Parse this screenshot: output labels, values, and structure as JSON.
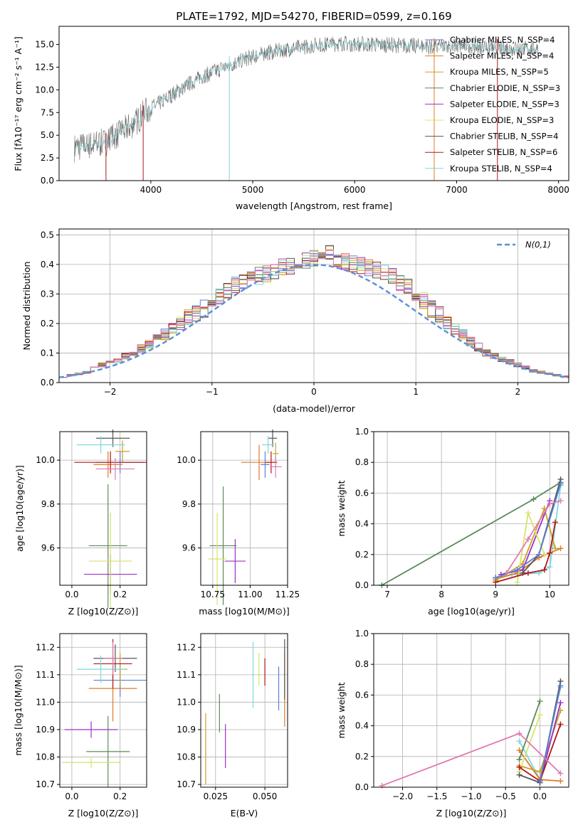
{
  "title": "PLATE=1792, MJD=54270, FIBERID=0599, z=0.169",
  "colors": [
    "#5b7fd6",
    "#e07a28",
    "#c9a227",
    "#5a8a5a",
    "#9b30c8",
    "#d8e36a",
    "#555555",
    "#b01818",
    "#7fd6dc",
    "#e07ab0"
  ],
  "spectrum": {
    "xlabel": "wavelength [Angstrom, rest frame]",
    "ylabel": "Flux [fλ10⁻¹⁷ erg cm⁻² s⁻¹ A⁻¹]",
    "xlim": [
      3100,
      8100
    ],
    "ylim": [
      0,
      17
    ],
    "xticks": [
      "4000",
      "5000",
      "6000",
      "7000",
      "8000"
    ],
    "yticks": [
      "0.0",
      "2.5",
      "5.0",
      "7.5",
      "10.0",
      "12.5",
      "15.0"
    ],
    "continuum_x": [
      3250,
      3400,
      3550,
      3700,
      3850,
      3950,
      4050,
      4200,
      4350,
      4500,
      4700,
      4900,
      5100,
      5300,
      5600,
      5900,
      6200,
      6500,
      6800,
      7100,
      7400,
      7700
    ],
    "continuum_y": [
      3.6,
      3.9,
      4.2,
      5.3,
      6.4,
      7.6,
      8.3,
      9.4,
      10.5,
      11.4,
      12.4,
      13.3,
      14.0,
      14.4,
      14.9,
      15.1,
      15.0,
      14.9,
      14.7,
      14.9,
      14.6,
      14.5
    ],
    "legend": [
      "Chabrier MILES, N_SSP=4",
      "Salpeter MILES, N_SSP=4",
      "Kroupa MILES, N_SSP=5",
      "Chabrier ELODIE, N_SSP=3",
      "Salpeter ELODIE, N_SSP=3",
      "Kroupa ELODIE, N_SSP=3",
      "Chabrier STELIB, N_SSP=4",
      "Salpeter STELIB, N_SSP=6",
      "Kroupa STELIB, N_SSP=4"
    ]
  },
  "histogram": {
    "xlabel": "(data-model)/error",
    "ylabel": "Normed distribution",
    "legend": "N(0,1)",
    "xlim": [
      -2.5,
      2.5
    ],
    "ylim": [
      0,
      0.52
    ],
    "xticks": [
      "−2",
      "−1",
      "0",
      "1",
      "2"
    ],
    "yticks": [
      "0.0",
      "0.1",
      "0.2",
      "0.3",
      "0.4",
      "0.5"
    ]
  },
  "age_vs_Z": {
    "xlabel": "Z [log10(Z/Z⊙)]",
    "ylabel": "age  [log10(age/yr)]",
    "xlim": [
      -0.05,
      0.31
    ],
    "ylim": [
      9.43,
      10.13
    ],
    "xticks": [
      "0.0",
      "0.2"
    ],
    "yticks": [
      "9.6",
      "9.8",
      "10.0"
    ]
  },
  "age_vs_mass": {
    "xlabel": "mass [log10(M/M⊙)]",
    "xlim": [
      10.67,
      11.25
    ],
    "ylim": [
      9.43,
      10.13
    ],
    "xticks": [
      "10.75",
      "11.00",
      "11.25"
    ],
    "yticks": [
      "9.6",
      "9.8",
      "10.0"
    ]
  },
  "weight_vs_age": {
    "xlabel": "age  [log10(age/yr)]",
    "ylabel": "mass weight",
    "xlim": [
      6.75,
      10.35
    ],
    "ylim": [
      0,
      1
    ],
    "xticks": [
      "7",
      "8",
      "9",
      "10"
    ],
    "yticks": [
      "0.0",
      "0.2",
      "0.4",
      "0.6",
      "0.8",
      "1.0"
    ]
  },
  "mass_vs_Z": {
    "xlabel": "Z [log10(Z/Z⊙)]",
    "ylabel": "mass [log10(M/M⊙)]",
    "xlim": [
      -0.05,
      0.31
    ],
    "ylim": [
      10.69,
      11.25
    ],
    "xticks": [
      "0.0",
      "0.2"
    ],
    "yticks": [
      "10.7",
      "10.8",
      "10.9",
      "11.0",
      "11.1",
      "11.2"
    ]
  },
  "mass_vs_ebv": {
    "xlabel": "E(B-V)",
    "xlim": [
      0.0175,
      0.0615
    ],
    "ylim": [
      10.69,
      11.25
    ],
    "xticks": [
      "0.025",
      "0.050"
    ],
    "yticks": [
      "10.7",
      "10.8",
      "10.9",
      "11.0",
      "11.1",
      "11.2"
    ]
  },
  "weight_vs_Z": {
    "xlabel": "Z [log10(Z/Z⊙)]",
    "ylabel": "mass weight",
    "xlim": [
      -2.42,
      0.42
    ],
    "ylim": [
      0,
      1
    ],
    "xticks": [
      "−2.0",
      "−1.5",
      "−1.0",
      "−0.5",
      "0.0"
    ],
    "yticks": [
      "0.0",
      "0.2",
      "0.4",
      "0.6",
      "0.8",
      "1.0"
    ]
  },
  "chart_data": [
    {
      "type": "line",
      "title": "PLATE=1792, MJD=54270, FIBERID=0599, z=0.169",
      "xlabel": "wavelength [Angstrom, rest frame]",
      "ylabel": "Flux [fλ10⁻¹⁷ erg cm⁻² s⁻¹ A⁻¹]",
      "xlim": [
        3100,
        8100
      ],
      "ylim": [
        0,
        17
      ],
      "series": [
        {
          "name": "Chabrier MILES, N_SSP=4"
        },
        {
          "name": "Salpeter MILES, N_SSP=4"
        },
        {
          "name": "Kroupa MILES, N_SSP=5"
        },
        {
          "name": "Chabrier ELODIE, N_SSP=3"
        },
        {
          "name": "Salpeter ELODIE, N_SSP=3"
        },
        {
          "name": "Kroupa ELODIE, N_SSP=3"
        },
        {
          "name": "Chabrier STELIB, N_SSP=4"
        },
        {
          "name": "Salpeter STELIB, N_SSP=6"
        },
        {
          "name": "Kroupa STELIB, N_SSP=4"
        }
      ],
      "approx_flux_x": [
        3250,
        3550,
        3850,
        4200,
        4500,
        4900,
        5300,
        5900,
        6500,
        7100,
        7700
      ],
      "approx_flux_y": [
        3.6,
        4.2,
        6.4,
        9.4,
        11.4,
        13.3,
        14.4,
        15.1,
        14.9,
        14.9,
        14.5
      ]
    },
    {
      "type": "bar",
      "xlabel": "(data-model)/error",
      "ylabel": "Normed distribution",
      "xlim": [
        -2.5,
        2.5
      ],
      "ylim": [
        0,
        0.52
      ],
      "bin_edges_start": -2.5,
      "bin_width": 0.1,
      "values": [
        0.02,
        0.025,
        0.03,
        0.035,
        0.05,
        0.06,
        0.07,
        0.075,
        0.09,
        0.1,
        0.115,
        0.13,
        0.15,
        0.165,
        0.18,
        0.2,
        0.22,
        0.235,
        0.25,
        0.27,
        0.29,
        0.31,
        0.33,
        0.34,
        0.35,
        0.36,
        0.37,
        0.38,
        0.39,
        0.395,
        0.4,
        0.41,
        0.42,
        0.43,
        0.44,
        0.42,
        0.41,
        0.4,
        0.395,
        0.39,
        0.38,
        0.37,
        0.36,
        0.34,
        0.32,
        0.3,
        0.28,
        0.25,
        0.23,
        0.2,
        0.18,
        0.16,
        0.14,
        0.12,
        0.1,
        0.09,
        0.08,
        0.07,
        0.06,
        0.05,
        0.04,
        0.035,
        0.03,
        0.025,
        0.02
      ],
      "gaussian": {
        "name": "N(0,1)",
        "mean": 0,
        "sigma": 1
      }
    },
    {
      "type": "scatter",
      "xlabel": "Z [log10(Z/Z⊙)]",
      "ylabel": "age  [log10(age/yr)]",
      "xlim": [
        -0.05,
        0.31
      ],
      "ylim": [
        9.43,
        10.13
      ],
      "points": [
        {
          "x": 0.2,
          "y": 9.99,
          "xerr": 0.1,
          "yerr": 0.05
        },
        {
          "x": 0.15,
          "y": 9.98,
          "xerr": 0.06,
          "yerr": 0.06
        },
        {
          "x": 0.21,
          "y": 10.04,
          "xerr": 0.03,
          "yerr": 0.05
        },
        {
          "x": 0.15,
          "y": 9.61,
          "xerr": 0.08,
          "yerr": 0.28
        },
        {
          "x": 0.16,
          "y": 9.48,
          "xerr": 0.11,
          "yerr": 0.09
        },
        {
          "x": 0.16,
          "y": 9.54,
          "xerr": 0.09,
          "yerr": 0.22
        },
        {
          "x": 0.17,
          "y": 10.1,
          "xerr": 0.07,
          "yerr": 0.04
        },
        {
          "x": 0.16,
          "y": 9.99,
          "xerr": 0.15,
          "yerr": 0.05
        },
        {
          "x": 0.12,
          "y": 10.07,
          "xerr": 0.1,
          "yerr": 0.04
        },
        {
          "x": 0.18,
          "y": 9.96,
          "xerr": 0.08,
          "yerr": 0.05
        }
      ]
    },
    {
      "type": "scatter",
      "xlabel": "mass [log10(M/M⊙)]",
      "ylabel": "age  [log10(age/yr)]",
      "xlim": [
        10.67,
        11.25
      ],
      "ylim": [
        9.43,
        10.13
      ],
      "points": [
        {
          "x": 11.1,
          "y": 9.98,
          "xerr": 0.03,
          "yerr": 0.06
        },
        {
          "x": 11.06,
          "y": 9.99,
          "xerr": 0.12,
          "yerr": 0.08
        },
        {
          "x": 11.17,
          "y": 10.03,
          "xerr": 0.02,
          "yerr": 0.05
        },
        {
          "x": 10.82,
          "y": 9.61,
          "xerr": 0.09,
          "yerr": 0.27
        },
        {
          "x": 10.9,
          "y": 9.54,
          "xerr": 0.07,
          "yerr": 0.1
        },
        {
          "x": 10.78,
          "y": 9.55,
          "xerr": 0.06,
          "yerr": 0.21
        },
        {
          "x": 11.15,
          "y": 10.1,
          "xerr": 0.03,
          "yerr": 0.04
        },
        {
          "x": 11.14,
          "y": 9.99,
          "xerr": 0.04,
          "yerr": 0.05
        },
        {
          "x": 11.12,
          "y": 10.07,
          "xerr": 0.04,
          "yerr": 0.04
        },
        {
          "x": 11.17,
          "y": 9.97,
          "xerr": 0.04,
          "yerr": 0.05
        }
      ]
    },
    {
      "type": "line",
      "xlabel": "age  [log10(age/yr)]",
      "ylabel": "mass weight",
      "xlim": [
        6.75,
        10.35
      ],
      "ylim": [
        0,
        1
      ],
      "series": [
        {
          "x": [
            9.0,
            9.3,
            9.8,
            10.0,
            10.2
          ],
          "y": [
            0.05,
            0.07,
            0.08,
            0.12,
            0.65
          ]
        },
        {
          "x": [
            9.0,
            9.4,
            9.8,
            10.2
          ],
          "y": [
            0.04,
            0.08,
            0.18,
            0.24
          ]
        },
        {
          "x": [
            9.0,
            9.5,
            9.9,
            10.1
          ],
          "y": [
            0.03,
            0.14,
            0.5,
            0.24
          ]
        },
        {
          "x": [
            6.9,
            9.7,
            10.2
          ],
          "y": [
            0.0,
            0.56,
            0.67
          ]
        },
        {
          "x": [
            9.1,
            9.5,
            10.0
          ],
          "y": [
            0.07,
            0.1,
            0.55
          ]
        },
        {
          "x": [
            9.4,
            9.6,
            9.9
          ],
          "y": [
            0.02,
            0.47,
            0.2
          ]
        },
        {
          "x": [
            9.5,
            9.8,
            10.2
          ],
          "y": [
            0.08,
            0.2,
            0.69
          ]
        },
        {
          "x": [
            9.0,
            9.6,
            9.9,
            10.0,
            10.1
          ],
          "y": [
            0.02,
            0.08,
            0.1,
            0.21,
            0.41
          ]
        },
        {
          "x": [
            9.0,
            9.4,
            9.8,
            10.2
          ],
          "y": [
            0.05,
            0.1,
            0.2,
            0.66
          ]
        },
        {
          "x": [
            9.2,
            9.6,
            10.0,
            10.2
          ],
          "y": [
            0.08,
            0.3,
            0.53,
            0.55
          ]
        }
      ]
    },
    {
      "type": "scatter",
      "xlabel": "Z [log10(Z/Z⊙)]",
      "ylabel": "mass [log10(M/M⊙)]",
      "xlim": [
        -0.05,
        0.31
      ],
      "ylim": [
        10.69,
        11.25
      ],
      "points": [
        {
          "x": 0.2,
          "y": 11.08,
          "xerr": 0.11,
          "yerr": 0.06
        },
        {
          "x": 0.17,
          "y": 11.05,
          "xerr": 0.1,
          "yerr": 0.12
        },
        {
          "x": 0.2,
          "y": 11.12,
          "xerr": 0.03,
          "yerr": 0.06
        },
        {
          "x": 0.15,
          "y": 10.82,
          "xerr": 0.09,
          "yerr": 0.13
        },
        {
          "x": 0.08,
          "y": 10.9,
          "xerr": 0.11,
          "yerr": 0.03
        },
        {
          "x": 0.08,
          "y": 10.78,
          "xerr": 0.12,
          "yerr": 0.02
        },
        {
          "x": 0.18,
          "y": 11.16,
          "xerr": 0.09,
          "yerr": 0.05
        },
        {
          "x": 0.17,
          "y": 11.14,
          "xerr": 0.08,
          "yerr": 0.09
        },
        {
          "x": 0.12,
          "y": 11.12,
          "xerr": 0.1,
          "yerr": 0.05
        },
        {
          "x": 0.17,
          "y": 11.16,
          "xerr": 0.04,
          "yerr": 0.06
        }
      ]
    },
    {
      "type": "scatter",
      "xlabel": "E(B-V)",
      "ylabel": "mass [log10(M/M⊙)]",
      "xlim": [
        0.0175,
        0.0615
      ],
      "ylim": [
        10.69,
        11.25
      ],
      "points": [
        {
          "x": 0.057,
          "y": 11.05,
          "yerr": 0.08
        },
        {
          "x": 0.06,
          "y": 11.05,
          "yerr": 0.14
        },
        {
          "x": 0.02,
          "y": 10.83,
          "yerr": 0.13
        },
        {
          "x": 0.027,
          "y": 10.96,
          "yerr": 0.07
        },
        {
          "x": 0.03,
          "y": 10.84,
          "yerr": 0.08
        },
        {
          "x": 0.047,
          "y": 11.12,
          "yerr": 0.06
        },
        {
          "x": 0.06,
          "y": 11.12,
          "yerr": 0.11
        },
        {
          "x": 0.05,
          "y": 11.11,
          "yerr": 0.05
        },
        {
          "x": 0.044,
          "y": 11.1,
          "yerr": 0.12
        }
      ]
    },
    {
      "type": "line",
      "xlabel": "Z [log10(Z/Z⊙)]",
      "ylabel": "mass weight",
      "xlim": [
        -2.42,
        0.42
      ],
      "ylim": [
        0,
        1
      ],
      "series": [
        {
          "x": [
            -0.3,
            0.0,
            0.3
          ],
          "y": [
            0.3,
            0.05,
            0.65
          ]
        },
        {
          "x": [
            -0.3,
            0.0,
            0.3
          ],
          "y": [
            0.24,
            0.05,
            0.04
          ]
        },
        {
          "x": [
            -0.3,
            0.0,
            0.3
          ],
          "y": [
            0.14,
            0.1,
            0.5
          ]
        },
        {
          "x": [
            -0.3,
            0.0
          ],
          "y": [
            0.18,
            0.56
          ]
        },
        {
          "x": [
            0.0,
            0.3
          ],
          "y": [
            0.03,
            0.55
          ]
        },
        {
          "x": [
            -0.3,
            0.0
          ],
          "y": [
            0.1,
            0.47
          ]
        },
        {
          "x": [
            -0.3,
            0.0,
            0.3
          ],
          "y": [
            0.08,
            0.03,
            0.69
          ]
        },
        {
          "x": [
            -0.3,
            0.0,
            0.3
          ],
          "y": [
            0.13,
            0.04,
            0.41
          ]
        },
        {
          "x": [
            0.0,
            0.3
          ],
          "y": [
            0.04,
            0.66
          ]
        },
        {
          "x": [
            -2.3,
            -0.3,
            0.3
          ],
          "y": [
            0.01,
            0.35,
            0.09
          ]
        }
      ]
    }
  ]
}
